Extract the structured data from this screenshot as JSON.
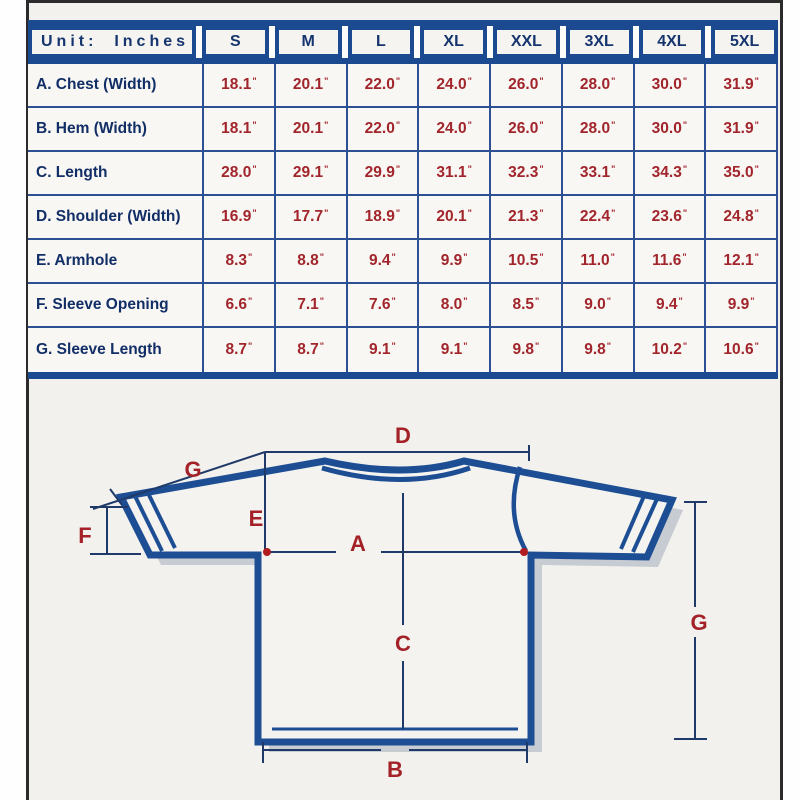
{
  "table": {
    "unit_header": "Unit:  Inches",
    "unit_mark": "\"",
    "sizes": [
      "S",
      "M",
      "L",
      "XL",
      "XXL",
      "3XL",
      "4XL",
      "5XL"
    ],
    "rows": [
      {
        "label": "A. Chest (Width)",
        "values": [
          "18.1",
          "20.1",
          "22.0",
          "24.0",
          "26.0",
          "28.0",
          "30.0",
          "31.9"
        ]
      },
      {
        "label": "B. Hem (Width)",
        "values": [
          "18.1",
          "20.1",
          "22.0",
          "24.0",
          "26.0",
          "28.0",
          "30.0",
          "31.9"
        ]
      },
      {
        "label": "C. Length",
        "values": [
          "28.0",
          "29.1",
          "29.9",
          "31.1",
          "32.3",
          "33.1",
          "34.3",
          "35.0"
        ]
      },
      {
        "label": "D. Shoulder (Width)",
        "values": [
          "16.9",
          "17.7",
          "18.9",
          "20.1",
          "21.3",
          "22.4",
          "23.6",
          "24.8"
        ]
      },
      {
        "label": "E. Armhole",
        "values": [
          "8.3",
          "8.8",
          "9.4",
          "9.9",
          "10.5",
          "11.0",
          "11.6",
          "12.1"
        ]
      },
      {
        "label": "F. Sleeve Opening",
        "values": [
          "6.6",
          "7.1",
          "7.6",
          "8.0",
          "8.5",
          "9.0",
          "9.4",
          "9.9"
        ]
      },
      {
        "label": "G. Sleeve Length",
        "values": [
          "8.7",
          "8.7",
          "9.1",
          "9.1",
          "9.8",
          "9.8",
          "10.2",
          "10.6"
        ]
      }
    ]
  },
  "diagram": {
    "labels": {
      "chest": "A",
      "hem": "B",
      "length": "C",
      "shoulder": "D",
      "armhole": "E",
      "sleeve_opening": "F",
      "sleeve_length_left": "G",
      "sleeve_length_right": "G"
    }
  },
  "colors": {
    "navy_border": "#1c4a90",
    "navy_outline": "#1d4e94",
    "dark_navy_text": "#122e66",
    "red_value": "#a1252b",
    "dim_line": "#1f3a68",
    "shadow": "#c7cbd2",
    "card_bg": "#f2f1ee"
  }
}
